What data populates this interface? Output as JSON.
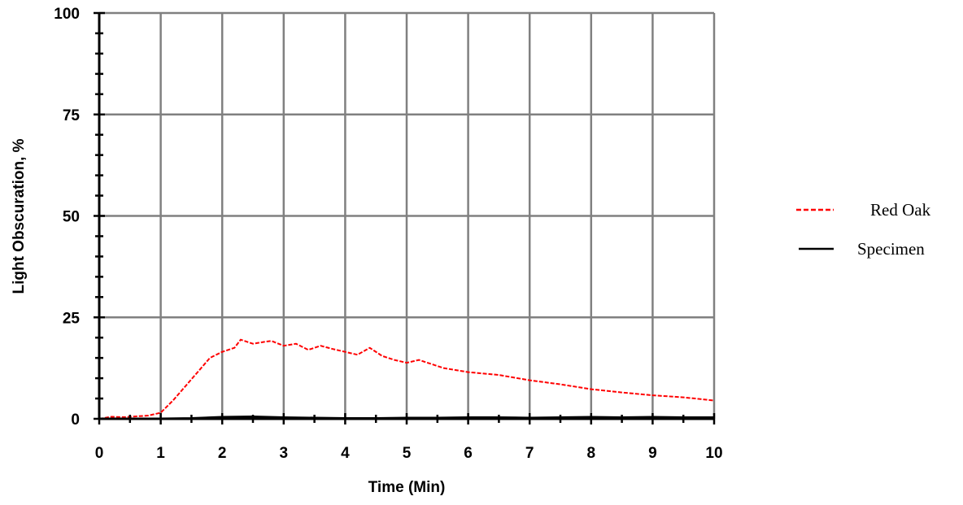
{
  "chart_data": {
    "type": "line",
    "title": "",
    "xlabel": "Time (Min)",
    "ylabel": "Light Obscuration, %",
    "xlim": [
      0,
      10
    ],
    "ylim": [
      0,
      100
    ],
    "x_ticks": [
      "0",
      "1",
      "2",
      "3",
      "4",
      "5",
      "6",
      "7",
      "8",
      "9",
      "10"
    ],
    "y_ticks": [
      "0",
      "25",
      "50",
      "75",
      "100"
    ],
    "grid": true,
    "legend_position": "right",
    "series": [
      {
        "name": "Red Oak",
        "color": "#ff0000",
        "style": "dashed",
        "x": [
          0,
          0.2,
          0.4,
          0.6,
          0.8,
          1.0,
          1.2,
          1.4,
          1.6,
          1.8,
          2.0,
          2.2,
          2.3,
          2.5,
          2.7,
          2.8,
          3.0,
          3.2,
          3.4,
          3.6,
          3.8,
          4.0,
          4.2,
          4.4,
          4.6,
          4.8,
          5.0,
          5.2,
          5.4,
          5.6,
          5.8,
          6.0,
          6.5,
          7.0,
          7.5,
          8.0,
          8.5,
          9.0,
          9.5,
          10.0
        ],
        "y": [
          0.0,
          0.5,
          0.4,
          0.6,
          0.8,
          1.5,
          4.5,
          8.0,
          11.5,
          15.0,
          16.5,
          17.5,
          19.5,
          18.5,
          19.0,
          19.2,
          18.0,
          18.5,
          17.0,
          18.0,
          17.2,
          16.5,
          15.8,
          17.5,
          15.5,
          14.5,
          13.8,
          14.5,
          13.5,
          12.5,
          12.0,
          11.5,
          10.8,
          9.5,
          8.5,
          7.3,
          6.5,
          5.8,
          5.3,
          4.5
        ]
      },
      {
        "name": "Specimen",
        "color": "#000000",
        "style": "solid",
        "x": [
          0,
          0.5,
          1.0,
          1.5,
          2.0,
          2.5,
          3.0,
          3.5,
          4.0,
          4.5,
          5.0,
          5.5,
          6.0,
          6.5,
          7.0,
          7.5,
          8.0,
          8.5,
          9.0,
          9.5,
          10.0
        ],
        "y": [
          0.0,
          0.0,
          0.0,
          0.1,
          0.4,
          0.5,
          0.3,
          0.2,
          0.1,
          0.1,
          0.2,
          0.2,
          0.3,
          0.3,
          0.2,
          0.3,
          0.4,
          0.3,
          0.4,
          0.3,
          0.3
        ]
      }
    ]
  }
}
